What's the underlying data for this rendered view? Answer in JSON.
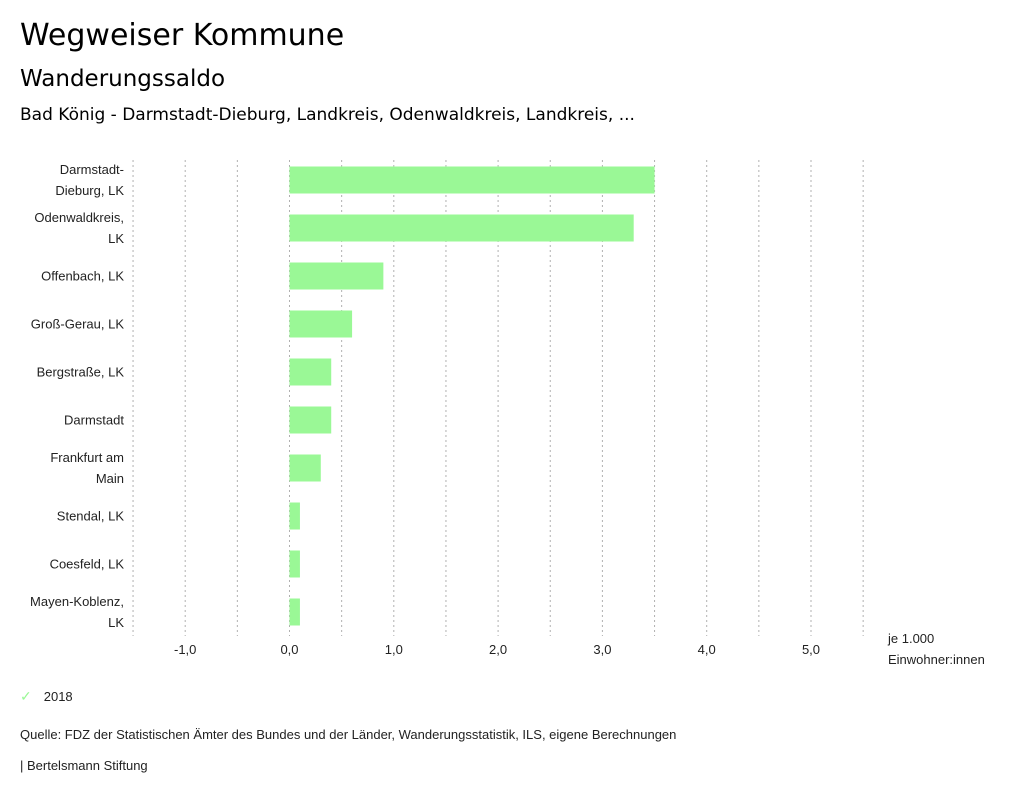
{
  "header": {
    "title": "Wegweiser Kommune",
    "subtitle": "Wanderungssaldo",
    "region": "Bad König - Darmstadt-Dieburg, Landkreis, Odenwaldkreis, Landkreis, ..."
  },
  "chart_data": {
    "type": "bar",
    "orientation": "horizontal",
    "title": "Wanderungssaldo",
    "categories": [
      [
        "Darmstadt-",
        "Dieburg, LK"
      ],
      [
        "Odenwaldkreis,",
        "LK"
      ],
      [
        "Offenbach, LK"
      ],
      [
        "Groß-Gerau, LK"
      ],
      [
        "Bergstraße, LK"
      ],
      [
        "Darmstadt"
      ],
      [
        "Frankfurt am",
        "Main"
      ],
      [
        "Stendal, LK"
      ],
      [
        "Coesfeld, LK"
      ],
      [
        "Mayen-Koblenz,",
        "LK"
      ]
    ],
    "series": [
      {
        "name": "2018",
        "color": "#9af896",
        "values": [
          3.5,
          3.3,
          0.9,
          0.6,
          0.4,
          0.4,
          0.3,
          0.1,
          0.1,
          0.1
        ]
      }
    ],
    "xlim": [
      -1.5,
      5.5
    ],
    "xticks": [
      -1,
      0,
      1,
      2,
      3,
      4,
      5
    ],
    "xtick_labels": [
      "-1,0",
      "0,0",
      "1,0",
      "2,0",
      "3,0",
      "4,0",
      "5,0"
    ],
    "grid_step": 0.5,
    "grid": true,
    "unit_label": [
      "je 1.000",
      "Einwohner:innen"
    ],
    "legend_position": "bottom-left"
  },
  "legend": {
    "label": "2018",
    "icon": "check-icon"
  },
  "footer": {
    "source": "Quelle: FDZ der Statistischen Ämter des Bundes und der Länder, Wanderungsstatistik, ILS, eigene Berechnungen",
    "brand": "| Bertelsmann Stiftung"
  }
}
